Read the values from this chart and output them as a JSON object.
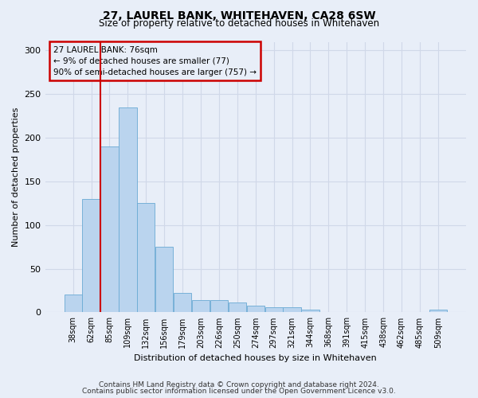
{
  "title": "27, LAUREL BANK, WHITEHAVEN, CA28 6SW",
  "subtitle": "Size of property relative to detached houses in Whitehaven",
  "xlabel": "Distribution of detached houses by size in Whitehaven",
  "ylabel": "Number of detached properties",
  "footer1": "Contains HM Land Registry data © Crown copyright and database right 2024.",
  "footer2": "Contains public sector information licensed under the Open Government Licence v3.0.",
  "bar_labels": [
    "38sqm",
    "62sqm",
    "85sqm",
    "109sqm",
    "132sqm",
    "156sqm",
    "179sqm",
    "203sqm",
    "226sqm",
    "250sqm",
    "274sqm",
    "297sqm",
    "321sqm",
    "344sqm",
    "368sqm",
    "391sqm",
    "415sqm",
    "438sqm",
    "462sqm",
    "485sqm",
    "509sqm"
  ],
  "bar_values": [
    20,
    130,
    190,
    235,
    125,
    75,
    22,
    14,
    14,
    11,
    8,
    6,
    6,
    3,
    0,
    0,
    0,
    0,
    0,
    0,
    3
  ],
  "bar_color": "#bad4ee",
  "bar_edge_color": "#6aaad4",
  "ylim": [
    0,
    310
  ],
  "yticks": [
    0,
    50,
    100,
    150,
    200,
    250,
    300
  ],
  "vline_x": 1.5,
  "vline_color": "#cc0000",
  "annotation_title": "27 LAUREL BANK: 76sqm",
  "annotation_line1": "← 9% of detached houses are smaller (77)",
  "annotation_line2": "90% of semi-detached houses are larger (757) →",
  "annotation_box_color": "#cc0000",
  "grid_color": "#d0d8e8",
  "background_color": "#e8eef8",
  "plot_bg_color": "#e8eef8"
}
